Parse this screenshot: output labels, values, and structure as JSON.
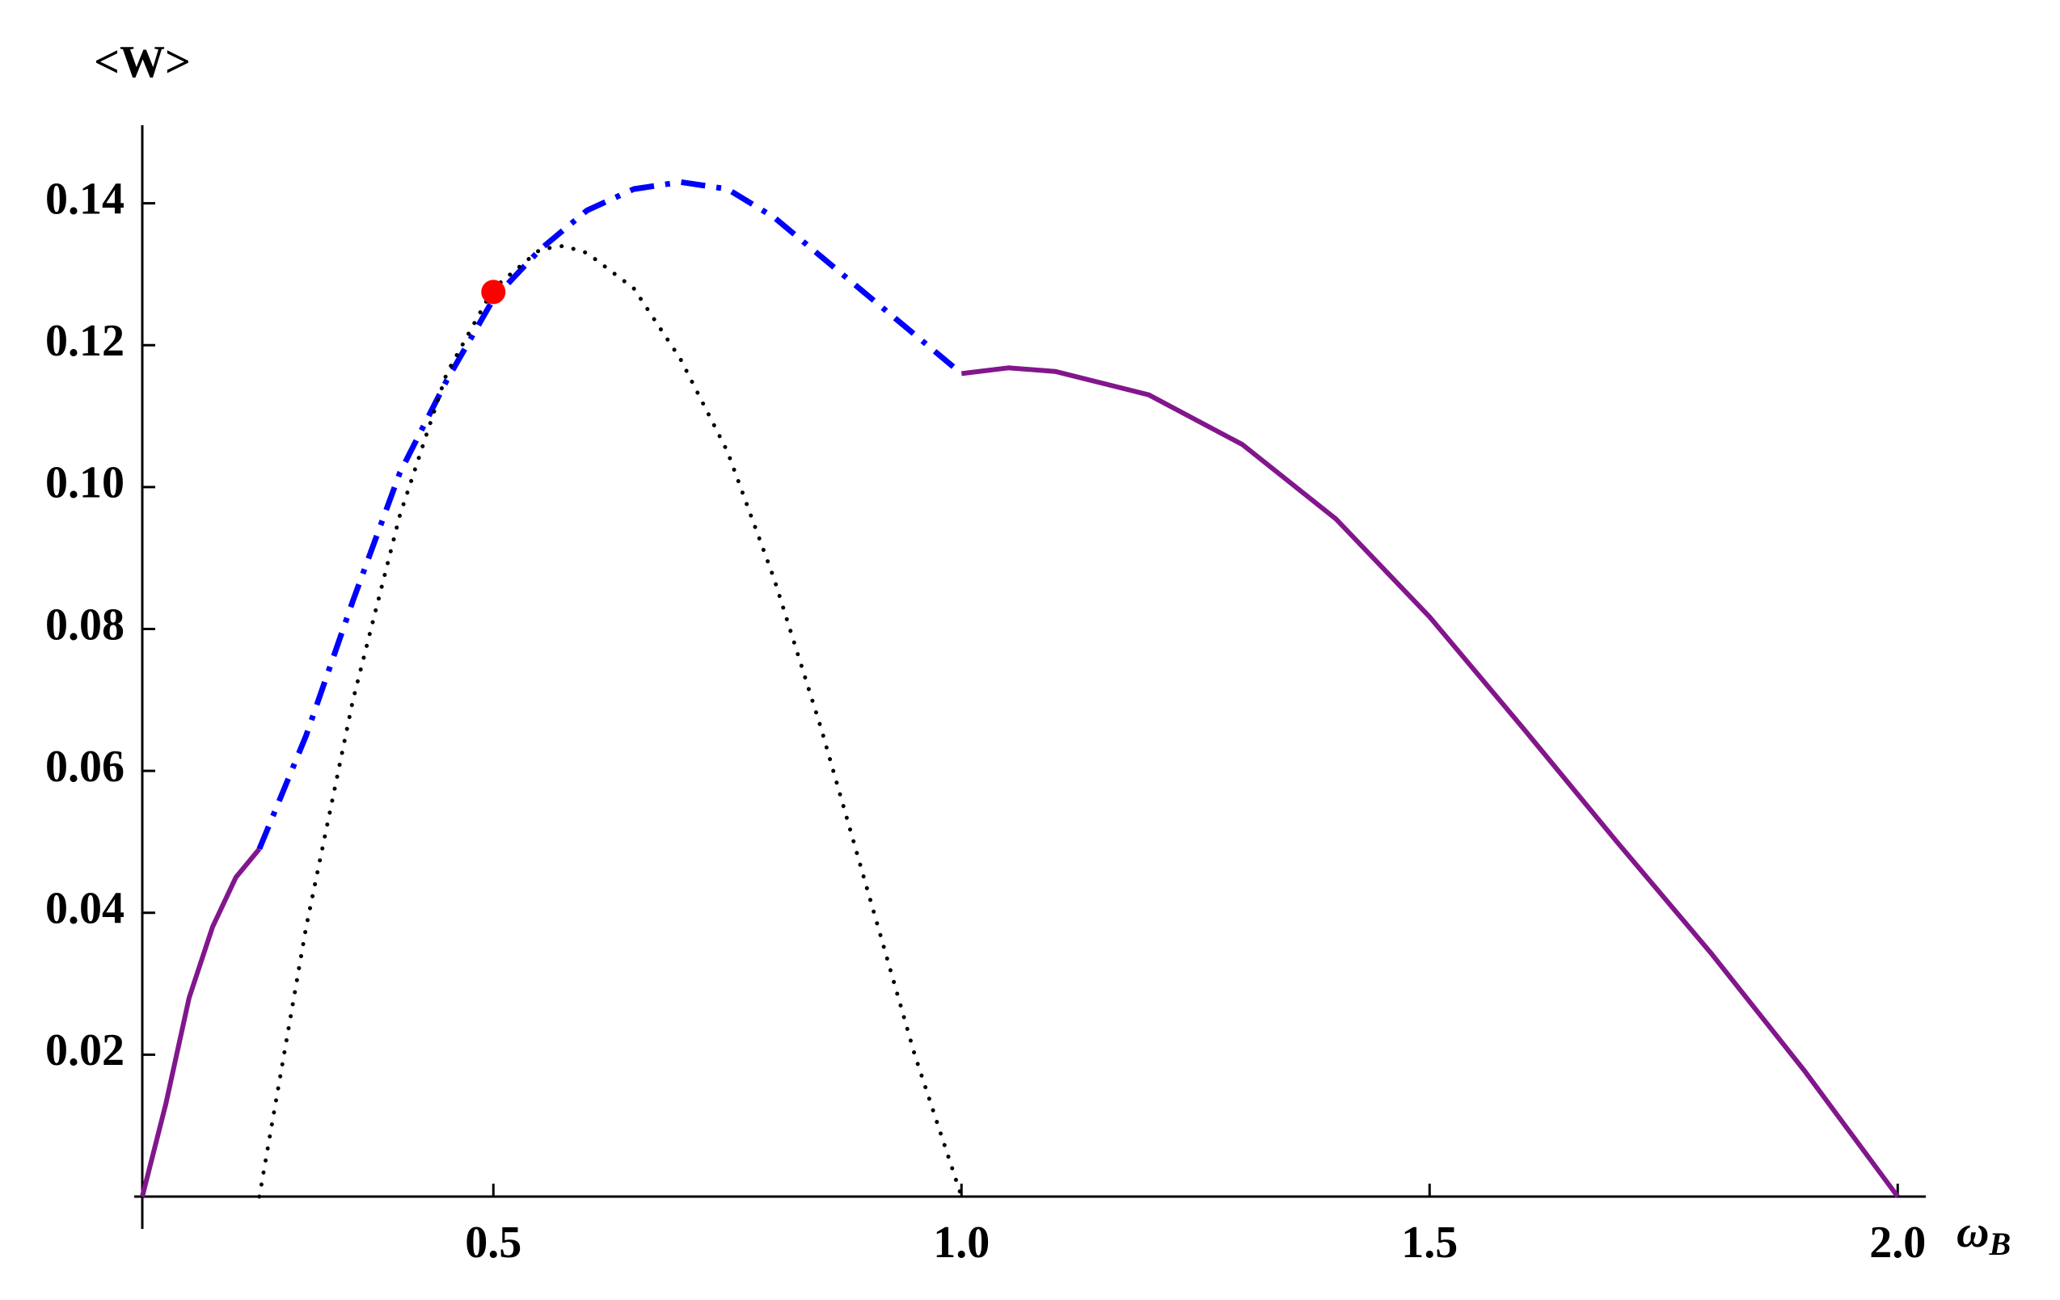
{
  "chart_data": {
    "type": "line",
    "ylabel": "<W>",
    "xlabel": "ω",
    "xlabel_subscript": "B",
    "xlim": [
      0.125,
      2.03
    ],
    "ylim": [
      0,
      0.151
    ],
    "xticks": [
      0.5,
      {
        "value": 1,
        "label": "1.0"
      },
      1.5,
      {
        "value": 2,
        "label": "2.0"
      }
    ],
    "yticks": [
      0.02,
      0.04,
      0.06,
      0.08,
      {
        "value": 0.1,
        "label": "0.10"
      },
      0.12,
      0.14
    ],
    "series": [
      {
        "color": "#82168c",
        "style": "solid",
        "x": [
          0.125,
          0.15,
          0.175,
          0.2,
          0.225,
          0.25
        ],
        "values": [
          0,
          0.013,
          0.028,
          0.038,
          0.045,
          0.049
        ]
      },
      {
        "color": "#0000ff",
        "style": "dashdot",
        "x": [
          0.25,
          0.3,
          0.35,
          0.4,
          0.45,
          0.5,
          0.55,
          0.6,
          0.65,
          0.7,
          0.75,
          0.8,
          0.85,
          0.9,
          0.95,
          1.0
        ],
        "values": [
          0.049,
          0.065,
          0.084,
          0.102,
          0.115,
          0.1265,
          0.1335,
          0.139,
          0.142,
          0.143,
          0.142,
          0.138,
          0.1325,
          0.127,
          0.1215,
          0.116
        ]
      },
      {
        "color": "#82168c",
        "style": "solid",
        "x": [
          1.0,
          1.05,
          1.1,
          1.2,
          1.3,
          1.4,
          1.5,
          1.6,
          1.7,
          1.8,
          1.9,
          2.0
        ],
        "values": [
          0.116,
          0.1168,
          0.1163,
          0.113,
          0.106,
          0.0955,
          0.0817,
          0.066,
          0.05,
          0.0344,
          0.0178,
          0
        ]
      },
      {
        "color": "#000000",
        "style": "dotted",
        "x": [
          0.25,
          0.3,
          0.35,
          0.4,
          0.45,
          0.5,
          0.55,
          0.575,
          0.6,
          0.65,
          0.7,
          0.75,
          0.8,
          0.85,
          0.9,
          0.95,
          1.0
        ],
        "values": [
          0,
          0.038,
          0.07,
          0.096,
          0.116,
          0.128,
          0.1335,
          0.134,
          0.133,
          0.128,
          0.118,
          0.105,
          0.087,
          0.066,
          0.043,
          0.02,
          0
        ]
      }
    ],
    "highlight": {
      "x": 0.5,
      "y": 0.1275,
      "color": "#ff0000"
    }
  }
}
